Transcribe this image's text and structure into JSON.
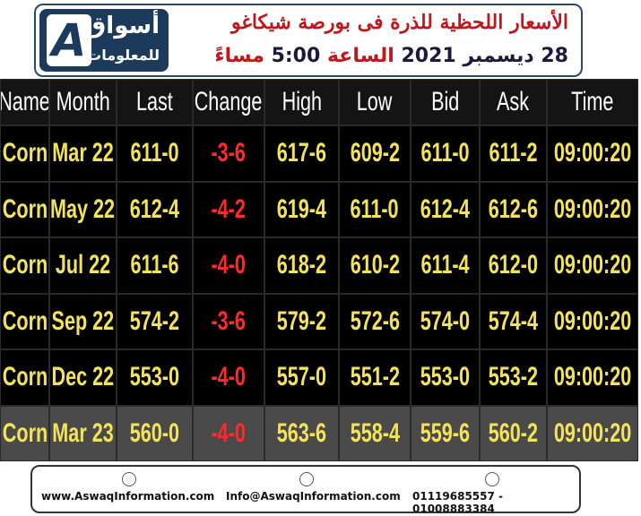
{
  "header": {
    "logo_main": "أسواق",
    "logo_sub": "للمعلومات",
    "title": "الأسعار اللحظية للذرة فى بورصة شيكاغو",
    "subtitle": [
      {
        "text": "28 ديسمبر 2021",
        "style": "dark"
      },
      {
        "text": "الساعة",
        "style": "accent"
      },
      {
        "text": "5:00",
        "style": "dark"
      },
      {
        "text": "مساءً",
        "style": "accent"
      }
    ]
  },
  "table": {
    "columns": [
      "Name",
      "Month",
      "Last",
      "Change",
      "High",
      "Low",
      "Bid",
      "Ask",
      "Time"
    ],
    "rows": [
      [
        "Corn",
        "Mar 22",
        "611-0",
        "-3-6",
        "617-6",
        "609-2",
        "611-0",
        "611-2",
        "09:00:20"
      ],
      [
        "Corn",
        "May 22",
        "612-4",
        "-4-2",
        "619-4",
        "611-0",
        "612-4",
        "612-6",
        "09:00:20"
      ],
      [
        "Corn",
        "Jul 22",
        "611-6",
        "-4-0",
        "618-2",
        "610-2",
        "611-4",
        "612-0",
        "09:00:20"
      ],
      [
        "Corn",
        "Sep 22",
        "574-2",
        "-3-6",
        "579-2",
        "572-6",
        "574-0",
        "574-4",
        "09:00:20"
      ],
      [
        "Corn",
        "Dec 22",
        "553-0",
        "-4-0",
        "557-0",
        "551-2",
        "553-0",
        "553-2",
        "09:00:20"
      ],
      [
        "Corn",
        "Mar 23",
        "560-0",
        "-4-0",
        "563-6",
        "558-4",
        "559-6",
        "560-2",
        "09:00:20"
      ]
    ]
  },
  "footer": {
    "website": "www.AswaqInformation.com",
    "email": "Info@AswaqInformation.com",
    "phone": "01119685557 - 01008883384"
  }
}
